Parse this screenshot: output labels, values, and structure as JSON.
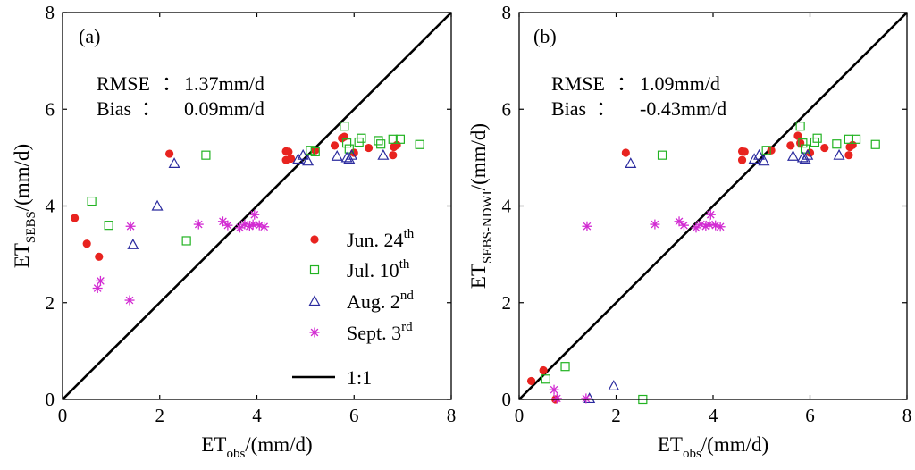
{
  "chart_data": [
    {
      "type": "scatter",
      "panel_label": "(a)",
      "xlabel": {
        "main": "ET",
        "sub": "obs",
        "rest": "/(mm/d)"
      },
      "ylabel": {
        "main": "ET",
        "sub": "SEBS",
        "rest": "/(mm/d)"
      },
      "xlim": [
        0,
        8
      ],
      "ylim": [
        0,
        8
      ],
      "xticks": [
        "0",
        "2",
        "4",
        "6",
        "8"
      ],
      "yticks": [
        "0",
        "2",
        "4",
        "6",
        "8"
      ],
      "annotations": [
        {
          "label": "RMSE",
          "sep": "：",
          "value": "1.37mm/d"
        },
        {
          "label": "Bias",
          "sep": "：",
          "value": "0.09mm/d"
        }
      ],
      "series": [
        {
          "name": "Jun. 24th",
          "marker": "dot",
          "color": "#e8231f",
          "points": [
            [
              0.25,
              3.75
            ],
            [
              0.5,
              3.22
            ],
            [
              0.75,
              2.95
            ],
            [
              2.2,
              5.08
            ],
            [
              4.6,
              5.13
            ],
            [
              4.65,
              5.12
            ],
            [
              4.6,
              4.95
            ],
            [
              4.7,
              4.98
            ],
            [
              5.2,
              5.15
            ],
            [
              5.6,
              5.25
            ],
            [
              5.75,
              5.4
            ],
            [
              5.8,
              5.43
            ],
            [
              6.0,
              5.1
            ],
            [
              6.3,
              5.2
            ],
            [
              6.8,
              5.05
            ],
            [
              6.82,
              5.22
            ],
            [
              6.88,
              5.26
            ]
          ]
        },
        {
          "name": "Jul. 10th",
          "marker": "square",
          "color": "#22b322",
          "points": [
            [
              0.6,
              4.1
            ],
            [
              0.95,
              3.6
            ],
            [
              2.55,
              3.28
            ],
            [
              2.95,
              5.05
            ],
            [
              5.1,
              5.15
            ],
            [
              5.2,
              5.12
            ],
            [
              5.8,
              5.65
            ],
            [
              5.85,
              5.3
            ],
            [
              5.9,
              5.18
            ],
            [
              6.1,
              5.32
            ],
            [
              6.15,
              5.4
            ],
            [
              6.5,
              5.35
            ],
            [
              6.55,
              5.28
            ],
            [
              6.8,
              5.38
            ],
            [
              6.95,
              5.38
            ],
            [
              7.35,
              5.27
            ]
          ]
        },
        {
          "name": "Aug. 2nd",
          "marker": "triangle",
          "color": "#2a2a9e",
          "points": [
            [
              1.45,
              3.2
            ],
            [
              1.95,
              4.0
            ],
            [
              2.3,
              4.88
            ],
            [
              4.85,
              4.97
            ],
            [
              4.95,
              5.05
            ],
            [
              5.05,
              4.93
            ],
            [
              5.65,
              5.03
            ],
            [
              5.85,
              5.0
            ],
            [
              5.9,
              4.97
            ],
            [
              5.95,
              5.05
            ],
            [
              6.6,
              5.05
            ]
          ]
        },
        {
          "name": "Sept. 3rd",
          "marker": "star",
          "color": "#d22ad2",
          "points": [
            [
              0.72,
              2.3
            ],
            [
              0.78,
              2.45
            ],
            [
              1.38,
              2.05
            ],
            [
              1.4,
              3.58
            ],
            [
              2.8,
              3.62
            ],
            [
              3.3,
              3.68
            ],
            [
              3.4,
              3.6
            ],
            [
              3.65,
              3.55
            ],
            [
              3.75,
              3.62
            ],
            [
              3.85,
              3.58
            ],
            [
              3.92,
              3.62
            ],
            [
              3.95,
              3.82
            ],
            [
              4.05,
              3.6
            ],
            [
              4.15,
              3.57
            ]
          ]
        }
      ],
      "legend": {
        "items": [
          {
            "base": "Jun. 24",
            "sup": "th"
          },
          {
            "base": "Jul. 10",
            "sup": "th"
          },
          {
            "base": "Aug. 2",
            "sup": "nd"
          },
          {
            "base": "Sept. 3",
            "sup": "rd"
          },
          {
            "base": "1:1",
            "sup": ""
          }
        ]
      },
      "reference_line": {
        "label": "1:1",
        "from": [
          0,
          0
        ],
        "to": [
          8,
          8
        ]
      }
    },
    {
      "type": "scatter",
      "panel_label": "(b)",
      "xlabel": {
        "main": "ET",
        "sub": "obs",
        "rest": "/(mm/d)"
      },
      "ylabel": {
        "main": "ET",
        "sub": "SEBS-NDWI",
        "rest": "/(mm/d)"
      },
      "xlim": [
        0,
        8
      ],
      "ylim": [
        0,
        8
      ],
      "xticks": [
        "0",
        "2",
        "4",
        "6",
        "8"
      ],
      "yticks": [
        "0",
        "2",
        "4",
        "6",
        "8"
      ],
      "annotations": [
        {
          "label": "RMSE",
          "sep": "：",
          "value": "1.09mm/d"
        },
        {
          "label": "Bias",
          "sep": "：",
          "value": "-0.43mm/d"
        }
      ],
      "series": [
        {
          "name": "Jun. 24th",
          "marker": "dot",
          "color": "#e8231f",
          "points": [
            [
              0.25,
              0.38
            ],
            [
              0.5,
              0.6
            ],
            [
              0.75,
              0.0
            ],
            [
              2.2,
              5.1
            ],
            [
              4.6,
              5.13
            ],
            [
              4.65,
              5.12
            ],
            [
              4.6,
              4.95
            ],
            [
              5.2,
              5.15
            ],
            [
              5.6,
              5.25
            ],
            [
              5.75,
              5.45
            ],
            [
              5.8,
              5.3
            ],
            [
              6.0,
              5.1
            ],
            [
              6.3,
              5.2
            ],
            [
              6.8,
              5.05
            ],
            [
              6.82,
              5.22
            ],
            [
              6.88,
              5.26
            ]
          ]
        },
        {
          "name": "Jul. 10th",
          "marker": "square",
          "color": "#22b322",
          "points": [
            [
              0.55,
              0.42
            ],
            [
              0.95,
              0.68
            ],
            [
              2.55,
              0.0
            ],
            [
              2.95,
              5.05
            ],
            [
              5.1,
              5.15
            ],
            [
              5.8,
              5.65
            ],
            [
              5.85,
              5.3
            ],
            [
              5.9,
              5.18
            ],
            [
              6.1,
              5.32
            ],
            [
              6.15,
              5.4
            ],
            [
              6.55,
              5.28
            ],
            [
              6.8,
              5.38
            ],
            [
              6.95,
              5.38
            ],
            [
              7.35,
              5.27
            ]
          ]
        },
        {
          "name": "Aug. 2nd",
          "marker": "triangle",
          "color": "#2a2a9e",
          "points": [
            [
              1.45,
              0.02
            ],
            [
              1.95,
              0.28
            ],
            [
              2.3,
              4.88
            ],
            [
              4.85,
              4.97
            ],
            [
              4.95,
              5.05
            ],
            [
              5.05,
              4.93
            ],
            [
              5.65,
              5.03
            ],
            [
              5.85,
              5.0
            ],
            [
              5.9,
              4.97
            ],
            [
              5.95,
              5.05
            ],
            [
              6.6,
              5.05
            ]
          ]
        },
        {
          "name": "Sept. 3rd",
          "marker": "star",
          "color": "#d22ad2",
          "points": [
            [
              0.72,
              0.2
            ],
            [
              0.78,
              0.02
            ],
            [
              1.38,
              0.02
            ],
            [
              1.4,
              3.58
            ],
            [
              2.8,
              3.62
            ],
            [
              3.3,
              3.68
            ],
            [
              3.4,
              3.6
            ],
            [
              3.65,
              3.55
            ],
            [
              3.75,
              3.62
            ],
            [
              3.85,
              3.58
            ],
            [
              3.92,
              3.62
            ],
            [
              3.95,
              3.82
            ],
            [
              4.05,
              3.6
            ],
            [
              4.15,
              3.57
            ]
          ]
        }
      ],
      "reference_line": {
        "label": "1:1",
        "from": [
          0,
          0
        ],
        "to": [
          8,
          8
        ]
      }
    }
  ]
}
